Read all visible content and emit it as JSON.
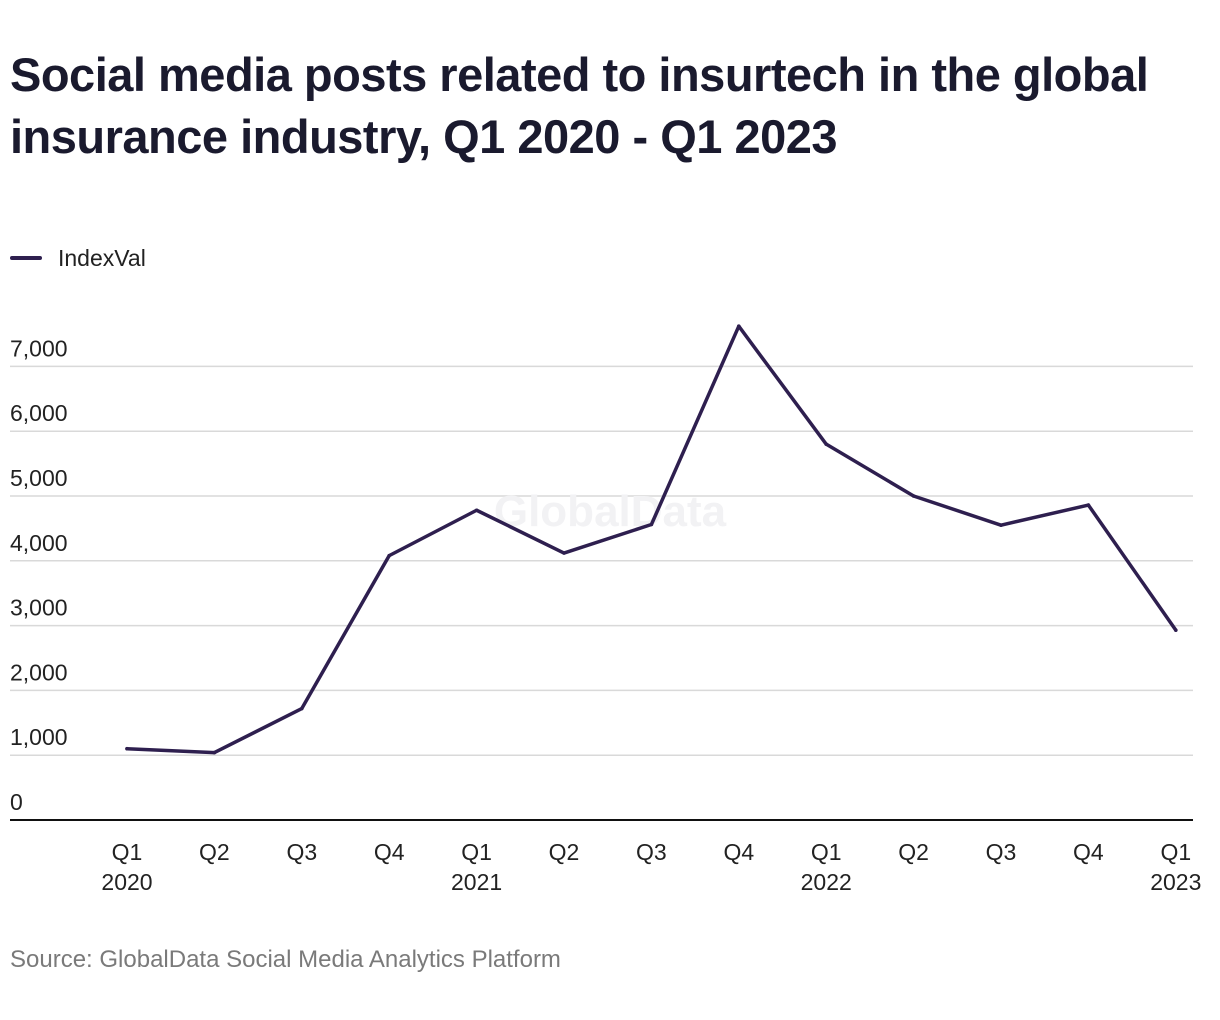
{
  "title": "Social media posts related to insurtech in the global insurance industry, Q1 2020 - Q1 2023",
  "source": "Source: GlobalData Social Media Analytics Platform",
  "watermark": "GlobalData",
  "colors": {
    "line": "#2e1f4f",
    "grid": "#d9d9d9",
    "axis": "#111111",
    "text": "#222222"
  },
  "chart_data": {
    "type": "line",
    "title": "Social media posts related to insurtech in the global insurance industry, Q1 2020 - Q1 2023",
    "xlabel": "",
    "ylabel": "",
    "legend_position": "top-left",
    "grid": true,
    "ylim": [
      0,
      7000
    ],
    "yticks": [
      "0",
      "1,000",
      "2,000",
      "3,000",
      "4,000",
      "5,000",
      "6,000",
      "7,000"
    ],
    "categories": [
      [
        "Q1",
        "2020"
      ],
      [
        "Q2"
      ],
      [
        "Q3"
      ],
      [
        "Q4"
      ],
      [
        "Q1",
        "2021"
      ],
      [
        "Q2"
      ],
      [
        "Q3"
      ],
      [
        "Q4"
      ],
      [
        "Q1",
        "2022"
      ],
      [
        "Q2"
      ],
      [
        "Q3"
      ],
      [
        "Q4"
      ],
      [
        "Q1",
        "2023"
      ]
    ],
    "series": [
      {
        "name": "IndexVal",
        "values": [
          1100,
          1040,
          1720,
          4080,
          4780,
          4120,
          4560,
          7620,
          5800,
          5000,
          4550,
          4860,
          2930
        ]
      }
    ]
  }
}
